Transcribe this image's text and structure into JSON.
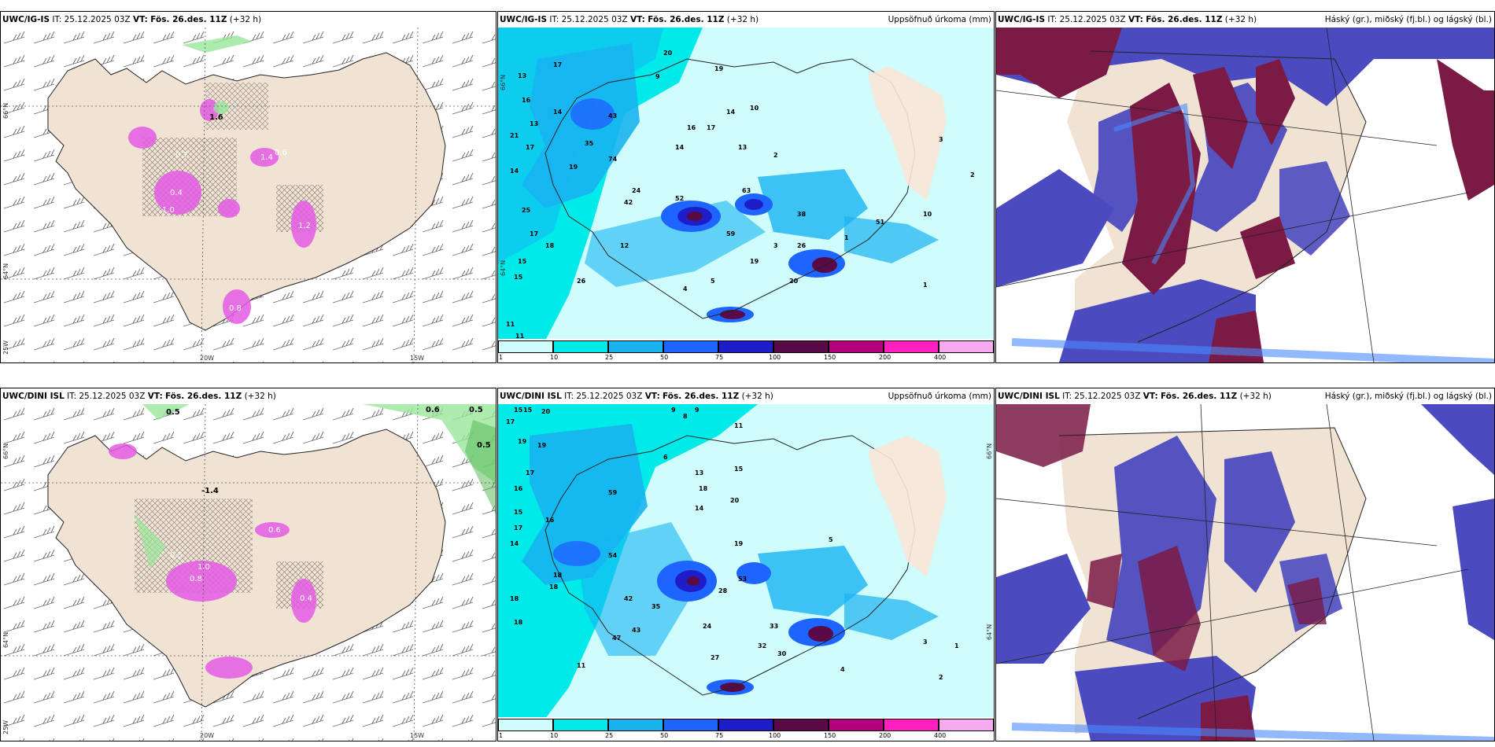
{
  "rows": [
    {
      "model": "UWC/IG-IS",
      "it_label": "IT:",
      "it_value": "25.12.2025 03Z",
      "vt_label": "VT:",
      "vt_value": "Fös. 26.des. 11Z",
      "lead": "(+32 h)"
    },
    {
      "model": "UWC/DINI ISL",
      "it_label": "IT:",
      "it_value": "25.12.2025 03Z",
      "vt_label": "VT:",
      "vt_value": "Fös. 26.des. 11Z",
      "lead": "(+32 h)"
    }
  ],
  "precip_title": "Uppsöfnuð úrkoma (mm)",
  "cloud_title": "Háský (gr.), miðský (fj.bl.) og lágský (bl.)",
  "axis_labels": {
    "lat66": "66°N",
    "lat64": "64°N",
    "lon20": "20W",
    "lon15": "15W",
    "lon25": "25W"
  },
  "colorbar": {
    "ticks": [
      "1",
      "10",
      "25",
      "50",
      "75",
      "100",
      "150",
      "200",
      "400"
    ],
    "colors": [
      "#cffcfc",
      "#00eaea",
      "#18b4f0",
      "#1e64ff",
      "#1e1ec8",
      "#5a0a46",
      "#b4007e",
      "#ff1ebe",
      "#f8aaf0"
    ]
  },
  "colors": {
    "land": "#f1e3d4",
    "green_precip": "#98e69a",
    "magenta_precip": "#e45ae4",
    "high_cloud": "#7a1a45",
    "mid_cloud": "#4b4bbf",
    "low_cloud": "#4a88ff"
  },
  "precip_labels_top": [
    "13",
    "17",
    "16",
    "13",
    "14",
    "17",
    "21",
    "20",
    "19",
    "14",
    "17",
    "18",
    "25",
    "15",
    "15",
    "11",
    "11",
    "9",
    "19",
    "16",
    "14",
    "17",
    "14",
    "13",
    "10",
    "1",
    "2",
    "3",
    "4",
    "5",
    "20",
    "19",
    "26",
    "24",
    "12",
    "26",
    "38",
    "43",
    "74",
    "42",
    "51",
    "52",
    "59",
    "63",
    "35",
    "10",
    "3",
    "2",
    "1"
  ],
  "precip_labels_bottom": [
    "15",
    "15",
    "20",
    "17",
    "19",
    "17",
    "19",
    "16",
    "15",
    "14",
    "17",
    "16",
    "18",
    "18",
    "18",
    "18",
    "9",
    "8",
    "9",
    "6",
    "11",
    "13",
    "14",
    "15",
    "18",
    "20",
    "19",
    "27",
    "33",
    "32",
    "30",
    "24",
    "28",
    "53",
    "42",
    "35",
    "59",
    "54",
    "47",
    "43",
    "11",
    "4",
    "3",
    "2",
    "1",
    "5"
  ],
  "snow_labels_top": [
    "1.6",
    "0.4",
    "1.4",
    "0.6",
    "1.2",
    "1.0",
    "0.7",
    "0.8"
  ],
  "snow_labels_bottom": [
    "0.5",
    "0.5",
    "0.6",
    "0.5",
    "-1.4",
    "0.8",
    "1.0",
    "0.4",
    "0.5",
    "0.6"
  ]
}
